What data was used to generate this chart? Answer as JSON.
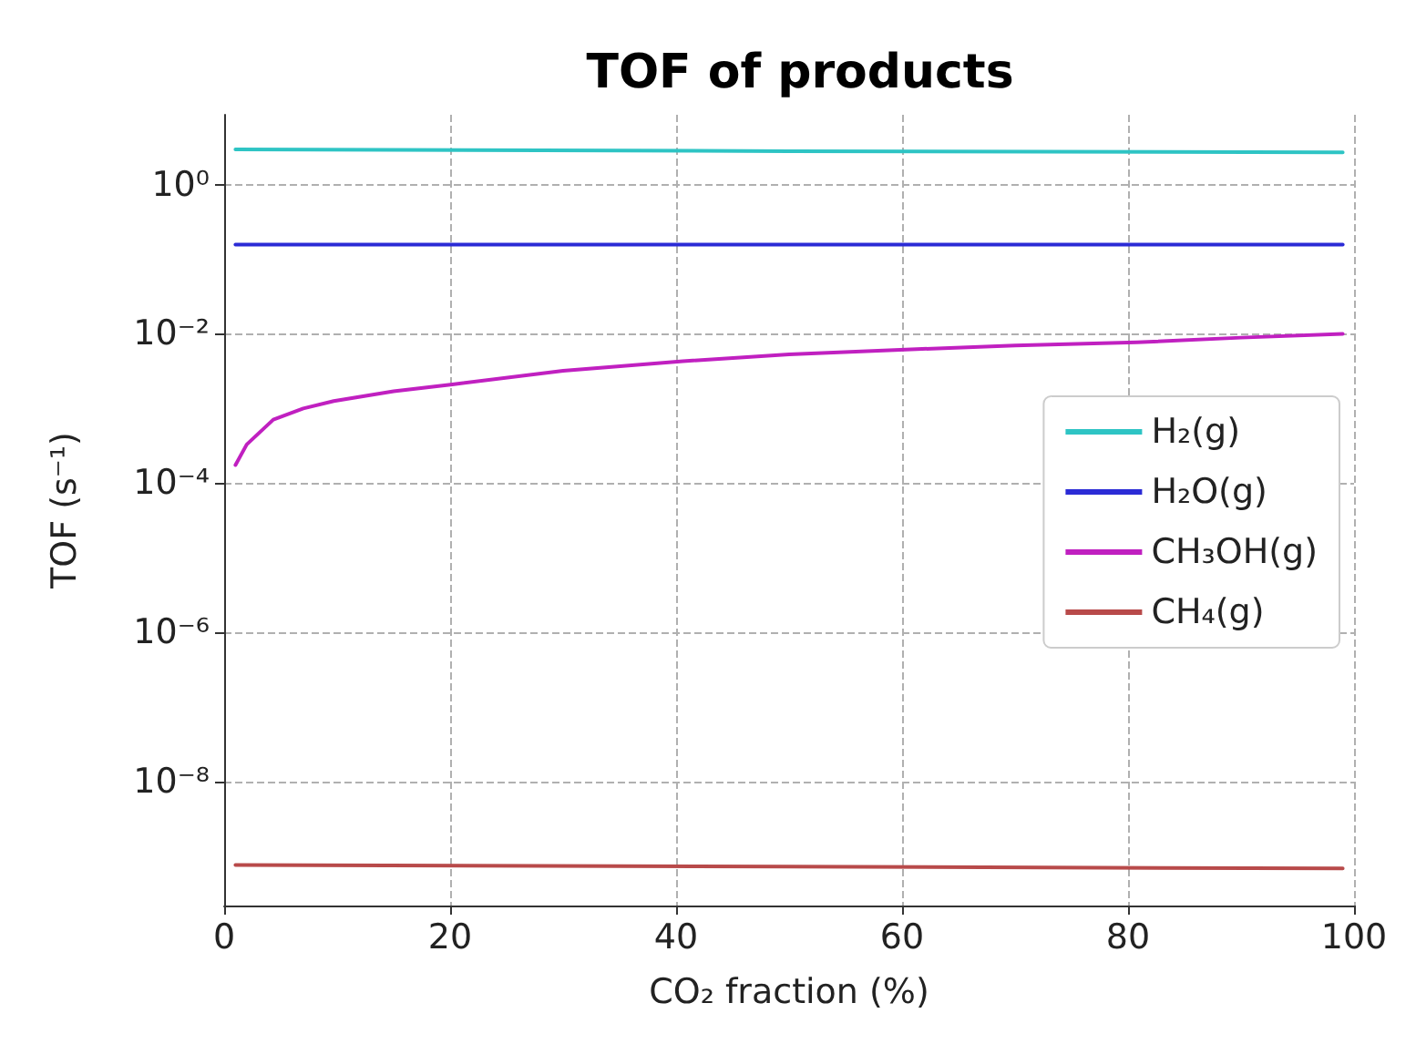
{
  "chart_data": {
    "type": "line",
    "title": "TOF of products",
    "xlabel": "CO₂ fraction (%)",
    "ylabel": "TOF (s⁻¹)",
    "log": "y",
    "grid": true,
    "legend": "right",
    "marker": "none",
    "line_style": "solid",
    "xlim": [
      0,
      100
    ],
    "xticks": [
      0,
      20,
      40,
      60,
      80,
      100
    ],
    "ylim": [
      2.2e-10,
      8.6
    ],
    "yticks": [
      {
        "value": 1,
        "label": "10⁰"
      },
      {
        "value": 0.01,
        "label": "10⁻²"
      },
      {
        "value": 0.0001,
        "label": "10⁻⁴"
      },
      {
        "value": 1e-06,
        "label": "10⁻⁶"
      },
      {
        "value": 1e-08,
        "label": "10⁻⁸"
      }
    ],
    "series": [
      {
        "name": "H₂(g)",
        "color": "#2ec4c4",
        "x": [
          1,
          50,
          99
        ],
        "values": [
          2.95,
          2.8,
          2.7
        ]
      },
      {
        "name": "H₂O(g)",
        "color": "#2b2bd6",
        "x": [
          1,
          50,
          99
        ],
        "values": [
          0.157,
          0.157,
          0.157
        ]
      },
      {
        "name": "CH₃OH(g)",
        "color": "#c020c0",
        "x": [
          1,
          2,
          4.35,
          7,
          9.7,
          15,
          20.2,
          30,
          40.6,
          50,
          60.8,
          70,
          80.8,
          90,
          99
        ],
        "values": [
          0.000175,
          0.00033,
          0.00071,
          0.001,
          0.00126,
          0.0017,
          0.0021,
          0.0032,
          0.0043,
          0.0053,
          0.0062,
          0.007,
          0.0077,
          0.0089,
          0.01
        ]
      },
      {
        "name": "CH₄(g)",
        "color": "#b84a4a",
        "x": [
          1,
          50,
          99
        ],
        "values": [
          7.7e-10,
          7.3e-10,
          6.9e-10
        ]
      }
    ]
  }
}
